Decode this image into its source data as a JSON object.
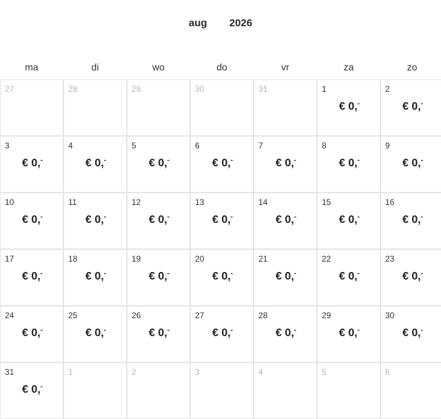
{
  "header": {
    "month": "aug",
    "year": "2026"
  },
  "weekdays": [
    "ma",
    "di",
    "wo",
    "do",
    "vr",
    "za",
    "zo"
  ],
  "price_label": "€ 0,",
  "price_suffix": "-",
  "weeks": [
    [
      {
        "day": "27",
        "muted": true
      },
      {
        "day": "28",
        "muted": true
      },
      {
        "day": "29",
        "muted": true
      },
      {
        "day": "30",
        "muted": true
      },
      {
        "day": "31",
        "muted": true
      },
      {
        "day": "1",
        "price": true
      },
      {
        "day": "2",
        "price": true
      }
    ],
    [
      {
        "day": "3",
        "price": true
      },
      {
        "day": "4",
        "price": true
      },
      {
        "day": "5",
        "price": true
      },
      {
        "day": "6",
        "price": true
      },
      {
        "day": "7",
        "price": true
      },
      {
        "day": "8",
        "price": true
      },
      {
        "day": "9",
        "price": true
      }
    ],
    [
      {
        "day": "10",
        "price": true
      },
      {
        "day": "11",
        "price": true
      },
      {
        "day": "12",
        "price": true
      },
      {
        "day": "13",
        "price": true
      },
      {
        "day": "14",
        "price": true
      },
      {
        "day": "15",
        "price": true
      },
      {
        "day": "16",
        "price": true
      }
    ],
    [
      {
        "day": "17",
        "price": true
      },
      {
        "day": "18",
        "price": true
      },
      {
        "day": "19",
        "price": true
      },
      {
        "day": "20",
        "price": true
      },
      {
        "day": "21",
        "price": true
      },
      {
        "day": "22",
        "price": true
      },
      {
        "day": "23",
        "price": true
      }
    ],
    [
      {
        "day": "24",
        "price": true
      },
      {
        "day": "25",
        "price": true
      },
      {
        "day": "26",
        "price": true
      },
      {
        "day": "27",
        "price": true
      },
      {
        "day": "28",
        "price": true
      },
      {
        "day": "29",
        "price": true
      },
      {
        "day": "30",
        "price": true
      }
    ],
    [
      {
        "day": "31",
        "price": true
      },
      {
        "day": "1",
        "muted": true
      },
      {
        "day": "2",
        "muted": true
      },
      {
        "day": "3",
        "muted": true
      },
      {
        "day": "4",
        "muted": true
      },
      {
        "day": "5",
        "muted": true
      },
      {
        "day": "6",
        "muted": true
      }
    ]
  ]
}
